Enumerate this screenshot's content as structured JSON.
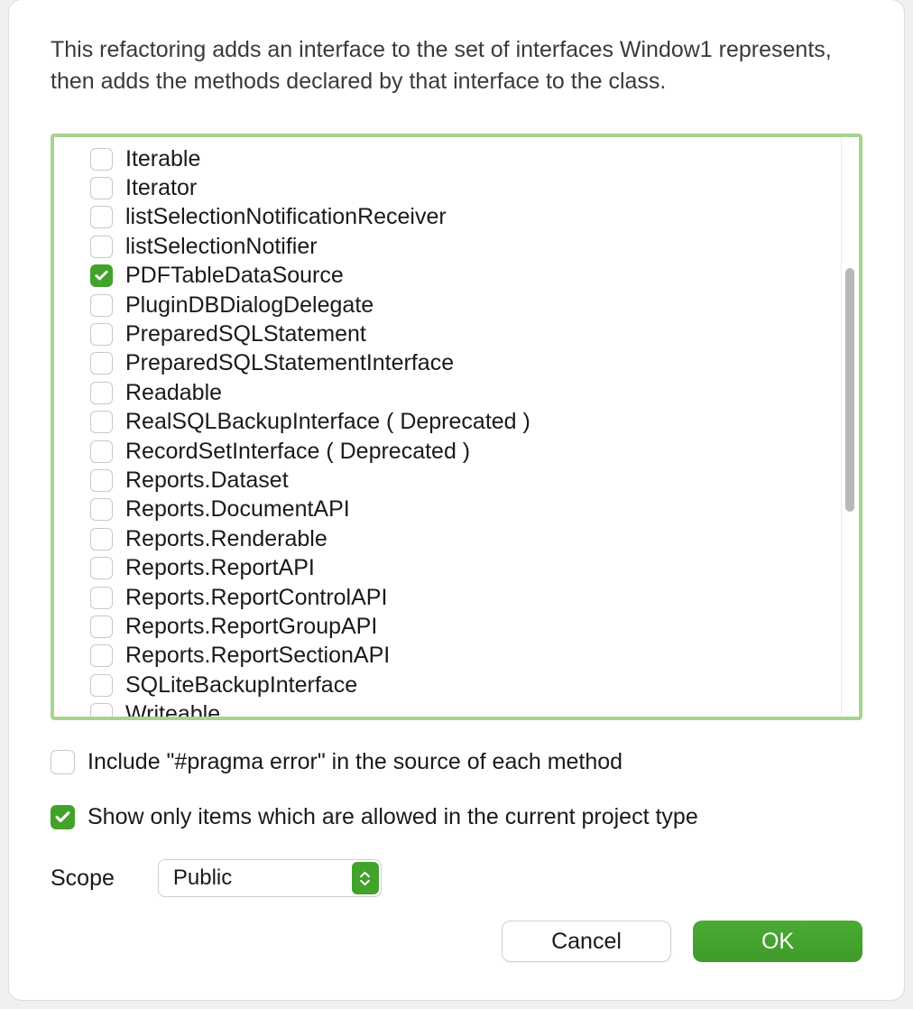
{
  "dialog": {
    "description": "This refactoring adds an interface to the set of interfaces Window1 represents, then adds the methods declared by that interface to the class.",
    "background_color": "#ffffff",
    "border_radius": 14
  },
  "list": {
    "border_color": "#a6d48f",
    "scrollbar_thumb_color": "#b8b8b8",
    "items": [
      {
        "label": "Iterable",
        "checked": false
      },
      {
        "label": "Iterator",
        "checked": false
      },
      {
        "label": "listSelectionNotificationReceiver",
        "checked": false
      },
      {
        "label": "listSelectionNotifier",
        "checked": false
      },
      {
        "label": "PDFTableDataSource",
        "checked": true
      },
      {
        "label": "PluginDBDialogDelegate",
        "checked": false
      },
      {
        "label": "PreparedSQLStatement",
        "checked": false
      },
      {
        "label": "PreparedSQLStatementInterface",
        "checked": false
      },
      {
        "label": "Readable",
        "checked": false
      },
      {
        "label": "RealSQLBackupInterface ( Deprecated )",
        "checked": false
      },
      {
        "label": "RecordSetInterface ( Deprecated )",
        "checked": false
      },
      {
        "label": "Reports.Dataset",
        "checked": false
      },
      {
        "label": "Reports.DocumentAPI",
        "checked": false
      },
      {
        "label": "Reports.Renderable",
        "checked": false
      },
      {
        "label": "Reports.ReportAPI",
        "checked": false
      },
      {
        "label": "Reports.ReportControlAPI",
        "checked": false
      },
      {
        "label": "Reports.ReportGroupAPI",
        "checked": false
      },
      {
        "label": "Reports.ReportSectionAPI",
        "checked": false
      },
      {
        "label": "SQLiteBackupInterface",
        "checked": false
      },
      {
        "label": "Writeable",
        "checked": false
      }
    ]
  },
  "options": {
    "pragma_error": {
      "label": "Include \"#pragma error\" in the source of each method",
      "checked": false
    },
    "show_allowed": {
      "label": "Show only items which are allowed in the current project type",
      "checked": true
    }
  },
  "scope": {
    "label": "Scope",
    "selected": "Public"
  },
  "buttons": {
    "cancel_label": "Cancel",
    "ok_label": "OK"
  },
  "colors": {
    "accent": "#42a22c",
    "text": "#1a1a1a",
    "border": "#d0d0d0"
  }
}
